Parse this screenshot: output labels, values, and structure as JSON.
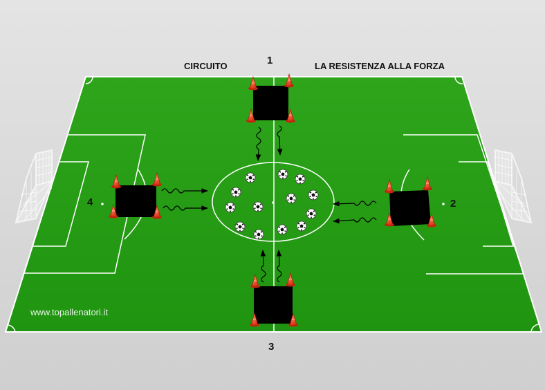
{
  "title_left": "CIRCUITO",
  "title_right": "LA RESISTENZA  ALLA FORZA",
  "stations": [
    {
      "number": "1"
    },
    {
      "number": "2"
    },
    {
      "number": "3"
    },
    {
      "number": "4"
    }
  ],
  "website": "www.topallenatori.it",
  "balls_count": 14,
  "colors": {
    "pitch": "#229a12",
    "lines": "#ffffff",
    "station_box": "#000000",
    "cone": "#e8381c",
    "background": "#d6d6d6"
  },
  "icons": [
    "football-icon",
    "cone-icon",
    "goal-icon",
    "squiggle-arrow-icon"
  ]
}
